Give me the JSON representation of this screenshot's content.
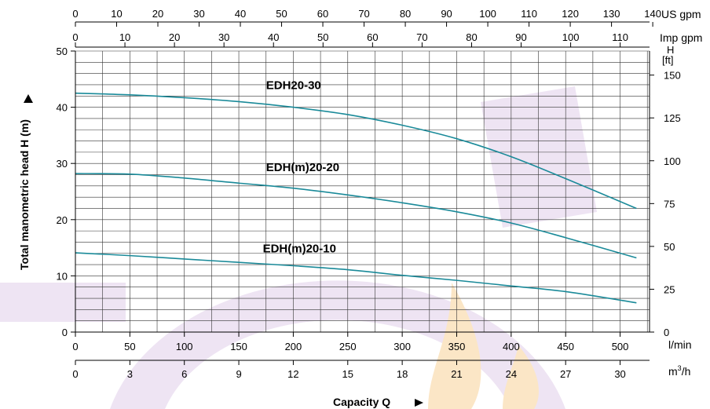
{
  "chart_data": {
    "type": "line",
    "xlabel": "Capacity Q",
    "ylabel": "Total manometric head H (m)",
    "x_unit": "l/min",
    "x_range": [
      0,
      527
    ],
    "ylim": [
      0,
      50
    ],
    "y_ticks": [
      0,
      10,
      20,
      30,
      40,
      50
    ],
    "x_ticks": [
      0,
      50,
      100,
      150,
      200,
      250,
      300,
      350,
      400,
      450,
      500
    ],
    "grid": true,
    "secondary_axes": {
      "us_gpm": {
        "label": "US gpm",
        "ticks": [
          0,
          10,
          20,
          30,
          40,
          50,
          60,
          70,
          80,
          90,
          100,
          110,
          120,
          130,
          140
        ]
      },
      "imp_gpm": {
        "label": "Imp gpm",
        "ticks": [
          0,
          10,
          20,
          30,
          40,
          50,
          60,
          70,
          80,
          90,
          100,
          110
        ]
      },
      "m3h": {
        "label_base": "m",
        "label_sup": "3",
        "label_tail": "/h",
        "ticks": [
          0,
          3,
          6,
          9,
          12,
          15,
          18,
          21,
          24,
          27,
          30
        ]
      },
      "ft": {
        "label_h": "H",
        "label_unit": "[ft]",
        "ticks": [
          0,
          25,
          50,
          75,
          100,
          125,
          150
        ]
      }
    },
    "series": [
      {
        "name": "EDH20-30",
        "color": "#1a8a99",
        "x": [
          0,
          50,
          100,
          150,
          200,
          250,
          300,
          350,
          400,
          450,
          515
        ],
        "y": [
          42.5,
          42.2,
          41.7,
          41.0,
          40.0,
          38.7,
          36.8,
          34.4,
          31.2,
          27.3,
          22.0
        ]
      },
      {
        "name": "EDH(m)20-20",
        "color": "#1a8a99",
        "x": [
          0,
          50,
          100,
          150,
          200,
          250,
          300,
          350,
          400,
          450,
          515
        ],
        "y": [
          28.2,
          28.1,
          27.4,
          26.5,
          25.6,
          24.4,
          23.0,
          21.4,
          19.4,
          16.8,
          13.2
        ]
      },
      {
        "name": "EDH(m)20-10",
        "color": "#1a8a99",
        "x": [
          0,
          50,
          100,
          150,
          200,
          250,
          300,
          350,
          400,
          450,
          515
        ],
        "y": [
          14.1,
          13.6,
          13.0,
          12.4,
          11.8,
          11.1,
          10.1,
          9.2,
          8.2,
          7.2,
          5.2
        ]
      }
    ]
  }
}
